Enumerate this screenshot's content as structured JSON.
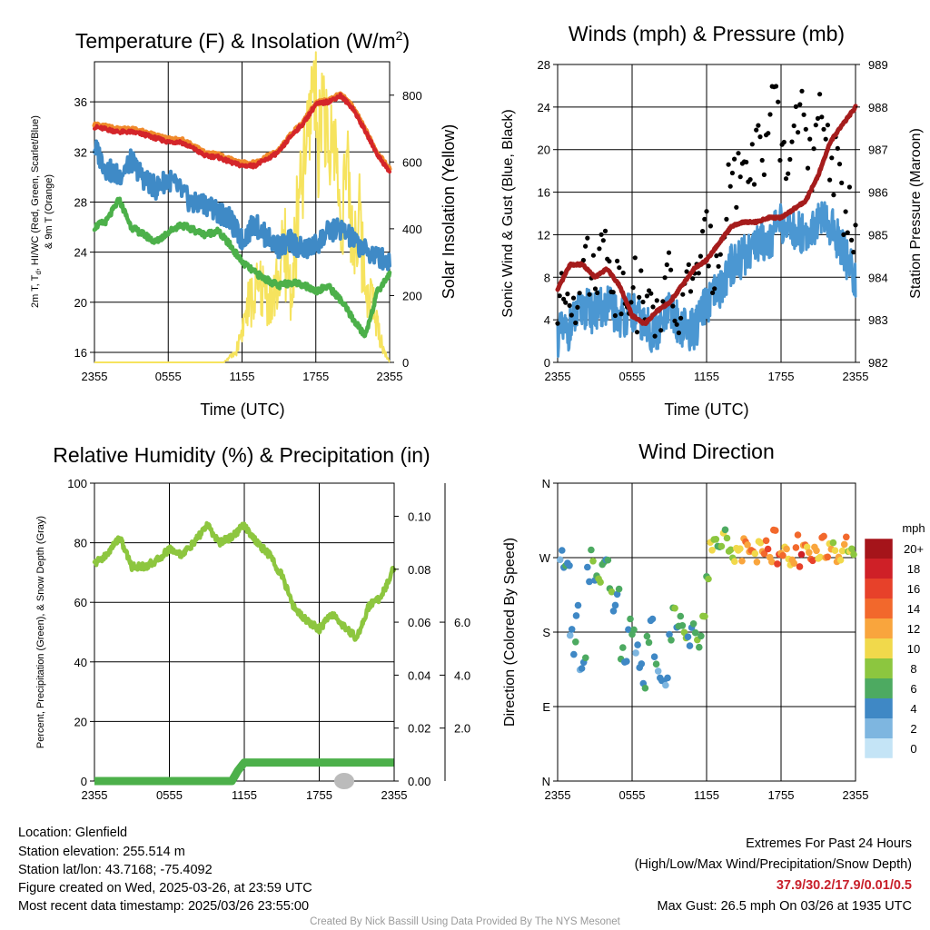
{
  "x_ticks": [
    "2355",
    "0555",
    "1155",
    "1755",
    "2355"
  ],
  "chart_data": [
    {
      "type": "line",
      "title": "Temperature (F) & Insolation (W/m",
      "title_sup": "2",
      "title_end": ")",
      "xlabel": "Time (UTC)",
      "ylabel_lines": [
        "2m T, T",
        "d",
        ", HI/WC (Red, Green, Scarlet/Blue)",
        "& 9m T (Orange)"
      ],
      "y2label": "Solar Insolation (Yellow)",
      "ylim": [
        15.2,
        39.2
      ],
      "y2lim": [
        0,
        900
      ],
      "yticks": [
        16,
        20,
        24,
        28,
        32,
        36
      ],
      "y2ticks": [
        0,
        200,
        400,
        600,
        800
      ],
      "x_hours": [
        0,
        6,
        12,
        18,
        24
      ],
      "series": [
        {
          "key": "t9m",
          "color": "#f08a2b",
          "x": [
            0,
            1,
            2,
            3,
            4,
            5,
            6,
            7,
            8,
            9,
            10,
            11,
            12,
            13,
            14,
            15,
            16,
            17,
            18,
            19,
            20,
            21,
            22,
            23,
            24
          ],
          "y": [
            34.2,
            34.0,
            33.8,
            33.8,
            33.6,
            33.3,
            33.0,
            33.0,
            32.5,
            31.9,
            31.8,
            31.4,
            31.1,
            31.1,
            31.6,
            32.1,
            33.4,
            34.4,
            35.9,
            36.1,
            36.6,
            35.6,
            33.8,
            31.9,
            30.6
          ]
        },
        {
          "key": "t2m",
          "color": "#d4252a",
          "x": [
            0,
            1,
            2,
            3,
            4,
            5,
            6,
            7,
            8,
            9,
            10,
            11,
            12,
            13,
            14,
            15,
            16,
            17,
            18,
            19,
            20,
            21,
            22,
            23,
            24
          ],
          "y": [
            34.0,
            33.8,
            33.6,
            33.6,
            33.4,
            33.1,
            32.8,
            32.8,
            32.3,
            31.7,
            31.6,
            31.2,
            30.9,
            30.9,
            31.4,
            32.0,
            33.3,
            34.3,
            35.8,
            36.0,
            36.5,
            35.5,
            33.7,
            31.8,
            30.4
          ]
        },
        {
          "key": "td",
          "color": "#4cb04a",
          "x": [
            0,
            1,
            2,
            3,
            4,
            5,
            6,
            7,
            8,
            9,
            10,
            11,
            12,
            13,
            14,
            15,
            16,
            17,
            18,
            19,
            20,
            21,
            22,
            23,
            24
          ],
          "y": [
            26.0,
            26.5,
            28.2,
            26.0,
            25.4,
            24.8,
            25.6,
            26.2,
            25.8,
            25.4,
            25.7,
            24.6,
            23.2,
            22.4,
            21.8,
            21.3,
            21.6,
            21.4,
            20.9,
            21.3,
            20.2,
            18.7,
            17.3,
            20.8,
            22.3
          ]
        },
        {
          "key": "wc",
          "color": "#3f8ac6",
          "x": [
            0,
            1,
            2,
            3,
            4,
            5,
            6,
            7,
            8,
            9,
            10,
            11,
            12,
            13,
            14,
            15,
            16,
            17,
            18,
            19,
            20,
            21,
            22,
            23,
            24
          ],
          "y": [
            32.4,
            30.6,
            30.1,
            31.3,
            29.9,
            29.1,
            29.9,
            28.9,
            27.8,
            27.9,
            27.3,
            26.6,
            24.9,
            26.3,
            25.2,
            24.4,
            24.9,
            24.1,
            24.6,
            25.6,
            25.9,
            25.0,
            24.1,
            23.7,
            23.2
          ]
        },
        {
          "key": "sol",
          "color": "#f6e35e",
          "axis": "y2",
          "x": [
            0,
            8,
            10.5,
            11.5,
            12.5,
            13.5,
            14.5,
            15.5,
            16.0,
            16.5,
            17.0,
            17.5,
            17.8,
            18.2,
            18.6,
            19.0,
            19.5,
            20.0,
            20.5,
            21.0,
            21.5,
            22.0,
            22.5,
            23.0,
            23.5,
            24.0
          ],
          "y": [
            0,
            0,
            0,
            30,
            170,
            220,
            180,
            330,
            200,
            420,
            560,
            720,
            890,
            650,
            830,
            580,
            700,
            420,
            580,
            360,
            430,
            240,
            200,
            110,
            40,
            0
          ]
        }
      ]
    },
    {
      "type": "line",
      "title": "Winds (mph) & Pressure (mb)",
      "xlabel": "Time (UTC)",
      "ylabel": "Sonic Wind & Gust (Blue, Black)",
      "y2label": "Station Pressure (Maroon)",
      "ylim": [
        0,
        28
      ],
      "y2lim": [
        982,
        989
      ],
      "yticks": [
        0,
        4,
        8,
        12,
        16,
        20,
        24,
        28
      ],
      "y2ticks": [
        982,
        983,
        984,
        985,
        986,
        987,
        988,
        989
      ],
      "series": [
        {
          "key": "wind",
          "color": "#4b97d2",
          "x": [
            0,
            1,
            2,
            3,
            4,
            5,
            6,
            7,
            8,
            9,
            10,
            11,
            12,
            13,
            14,
            15,
            16,
            17,
            18,
            19,
            20,
            21,
            22,
            23,
            24
          ],
          "y": [
            2.5,
            3.2,
            5.2,
            4.6,
            5.4,
            4.2,
            4.8,
            3.4,
            2.6,
            4.8,
            3.4,
            3.0,
            5.4,
            6.6,
            9.2,
            10.0,
            11.4,
            11.6,
            13.0,
            12.4,
            12.2,
            13.4,
            12.8,
            10.8,
            7.4
          ]
        },
        {
          "key": "gust",
          "color": "#000000",
          "x": [
            0,
            0.5,
            1,
            1.5,
            2,
            2.5,
            3,
            3.5,
            4,
            4.5,
            5,
            5.5,
            6,
            6.5,
            7,
            7.5,
            8,
            8.5,
            9,
            9.5,
            10,
            10.5,
            11,
            11.5,
            12,
            12.5,
            13,
            13.5,
            14,
            14.5,
            15,
            15.5,
            16,
            16.5,
            17,
            17.5,
            18,
            18.5,
            19,
            19.5,
            20,
            20.5,
            21,
            21.5,
            22,
            22.5,
            23,
            23.5,
            24
          ],
          "y": [
            5,
            6,
            7,
            6,
            12,
            8,
            9,
            10,
            12,
            7,
            8,
            6,
            9,
            5,
            7,
            4,
            6,
            5,
            8,
            4,
            5,
            7,
            10,
            8,
            12,
            9,
            11,
            15,
            18,
            17,
            20,
            17,
            21,
            19,
            22,
            24,
            20,
            18,
            21,
            26,
            20,
            17,
            22,
            24,
            19,
            18,
            14,
            15,
            12
          ]
        },
        {
          "key": "pressure",
          "color": "#a51c1c",
          "axis": "y2",
          "x": [
            0,
            1,
            2,
            3,
            4,
            5,
            6,
            7,
            8,
            9,
            10,
            11,
            12,
            13,
            14,
            15,
            16,
            17,
            18,
            19,
            20,
            21,
            22,
            23,
            24
          ],
          "y": [
            983.7,
            984.3,
            984.3,
            984.0,
            984.2,
            983.8,
            983.1,
            982.9,
            983.2,
            983.4,
            983.8,
            984.2,
            984.4,
            984.8,
            985.2,
            985.3,
            985.3,
            985.4,
            985.4,
            985.6,
            985.8,
            986.4,
            987.2,
            987.6,
            988.0
          ]
        }
      ]
    },
    {
      "type": "line",
      "title": "Relative Humidity (%) & Precipitation (in)",
      "ylabel": "Percent, Precipitation (Green), & Snow Depth (Gray)",
      "ylim": [
        0,
        100
      ],
      "y2lim": [
        0,
        0.1125
      ],
      "y3lim": [
        0,
        11.25
      ],
      "yticks": [
        0,
        20,
        40,
        60,
        80,
        100
      ],
      "y2ticks": [
        "0.00",
        "0.02",
        "0.04",
        "0.06",
        "0.08",
        "0.10"
      ],
      "y3ticks": [
        "2.0",
        "4.0",
        "6.0"
      ],
      "series": [
        {
          "key": "rh",
          "color": "#8dc63f",
          "x": [
            0,
            1,
            2,
            3,
            4,
            5,
            6,
            7,
            8,
            9,
            10,
            11,
            12,
            13,
            14,
            15,
            16,
            17,
            18,
            19,
            20,
            21,
            22,
            23,
            24
          ],
          "y": [
            73,
            76,
            82,
            72,
            72,
            74,
            78,
            76,
            80,
            86,
            80,
            82,
            86,
            80,
            76,
            69,
            58,
            54,
            51,
            56,
            52,
            48,
            59,
            62,
            72
          ]
        },
        {
          "key": "precip",
          "color": "#4cb04a",
          "axis": "y2",
          "x": [
            0,
            11,
            11.5,
            12,
            24
          ],
          "y": [
            0,
            0,
            0.004,
            0.007,
            0.007
          ]
        },
        {
          "key": "snow",
          "color": "#bbbbbb",
          "axis": "y3",
          "x": [
            20
          ],
          "y": [
            0
          ]
        }
      ]
    },
    {
      "type": "scatter",
      "title": "Wind Direction",
      "ylabel": "Direction (Colored By Speed)",
      "yticks": [
        "N",
        "E",
        "S",
        "W",
        "N"
      ],
      "ylim": [
        0,
        360
      ],
      "legend_title": "mph",
      "legend_labels": [
        "20+",
        "18",
        "16",
        "14",
        "12",
        "10",
        "8",
        "6",
        "4",
        "2",
        "0"
      ],
      "legend_colors": [
        "#a5141a",
        "#cf2027",
        "#e7412a",
        "#f2682c",
        "#f9a53d",
        "#f1d94b",
        "#8cc63f",
        "#4daa61",
        "#3f88c5",
        "#7eb6e0",
        "#c4e4f6"
      ],
      "points": {
        "x": [
          0.2,
          0.5,
          0.8,
          1.0,
          1.3,
          1.5,
          1.8,
          2.1,
          2.4,
          2.7,
          3.0,
          3.3,
          3.6,
          3.9,
          4.2,
          4.5,
          4.8,
          5.1,
          5.4,
          5.7,
          6.0,
          6.3,
          6.6,
          6.9,
          7.2,
          7.5,
          7.8,
          8.1,
          8.4,
          8.7,
          9.0,
          9.3,
          9.6,
          9.9,
          10.2,
          10.5,
          10.8,
          11.1,
          11.4,
          11.7,
          12.0,
          12.3,
          12.6,
          12.9,
          13.2,
          13.5,
          13.8,
          14.1,
          14.4,
          14.7,
          15.0,
          15.3,
          15.6,
          15.9,
          16.2,
          16.5,
          16.8,
          17.1,
          17.4,
          17.7,
          18.0,
          18.3,
          18.6,
          18.9,
          19.2,
          19.5,
          19.8,
          20.1,
          20.4,
          20.7,
          21.0,
          21.3,
          21.6,
          21.9,
          22.2,
          22.5,
          22.8,
          23.1,
          23.4,
          23.7
        ],
        "dir": [
          270,
          255,
          262,
          185,
          160,
          205,
          130,
          150,
          250,
          272,
          240,
          238,
          268,
          262,
          225,
          210,
          232,
          155,
          142,
          190,
          175,
          160,
          135,
          120,
          172,
          195,
          150,
          128,
          115,
          120,
          178,
          210,
          185,
          192,
          180,
          170,
          185,
          175,
          170,
          195,
          250,
          282,
          295,
          285,
          292,
          300,
          280,
          270,
          285,
          272,
          290,
          282,
          278,
          268,
          290,
          275,
          282,
          268,
          295,
          270,
          275,
          280,
          262,
          272,
          290,
          268,
          278,
          282,
          270,
          285,
          275,
          290,
          272,
          278,
          285,
          270,
          275,
          290,
          280,
          272
        ],
        "spd": [
          2,
          4,
          3,
          2,
          4,
          3,
          2,
          4,
          3,
          6,
          4,
          7,
          5,
          4,
          6,
          3,
          4,
          5,
          3,
          4,
          5,
          2,
          3,
          4,
          5,
          3,
          4,
          2,
          3,
          2,
          4,
          6,
          4,
          5,
          7,
          3,
          4,
          6,
          5,
          7,
          6,
          9,
          7,
          5,
          8,
          6,
          7,
          8,
          9,
          10,
          12,
          11,
          13,
          10,
          9,
          12,
          14,
          11,
          13,
          15,
          12,
          10,
          9,
          11,
          13,
          16,
          12,
          10,
          14,
          11,
          9,
          13,
          12,
          10,
          8,
          11,
          9,
          12,
          8,
          7
        ]
      }
    }
  ],
  "footer": {
    "location": "Location: Glenfield",
    "elevation": "Station elevation: 255.514 m",
    "latlon": "Station lat/lon: 43.7168; -75.4092",
    "created": "Figure created on Wed, 2025-03-26, at 23:59 UTC",
    "recent": "Most recent data timestamp: 2025/03/26 23:55:00",
    "extremes_title": "Extremes For Past 24 Hours",
    "extremes_sub": "(High/Low/Max Wind/Precipitation/Snow Depth)",
    "extremes_values": "37.9/30.2/17.9/0.01/0.5",
    "max_gust": "Max Gust: 26.5 mph On 03/26 at 1935 UTC",
    "credit": "Created By Nick Bassill Using Data Provided By The NYS Mesonet"
  }
}
